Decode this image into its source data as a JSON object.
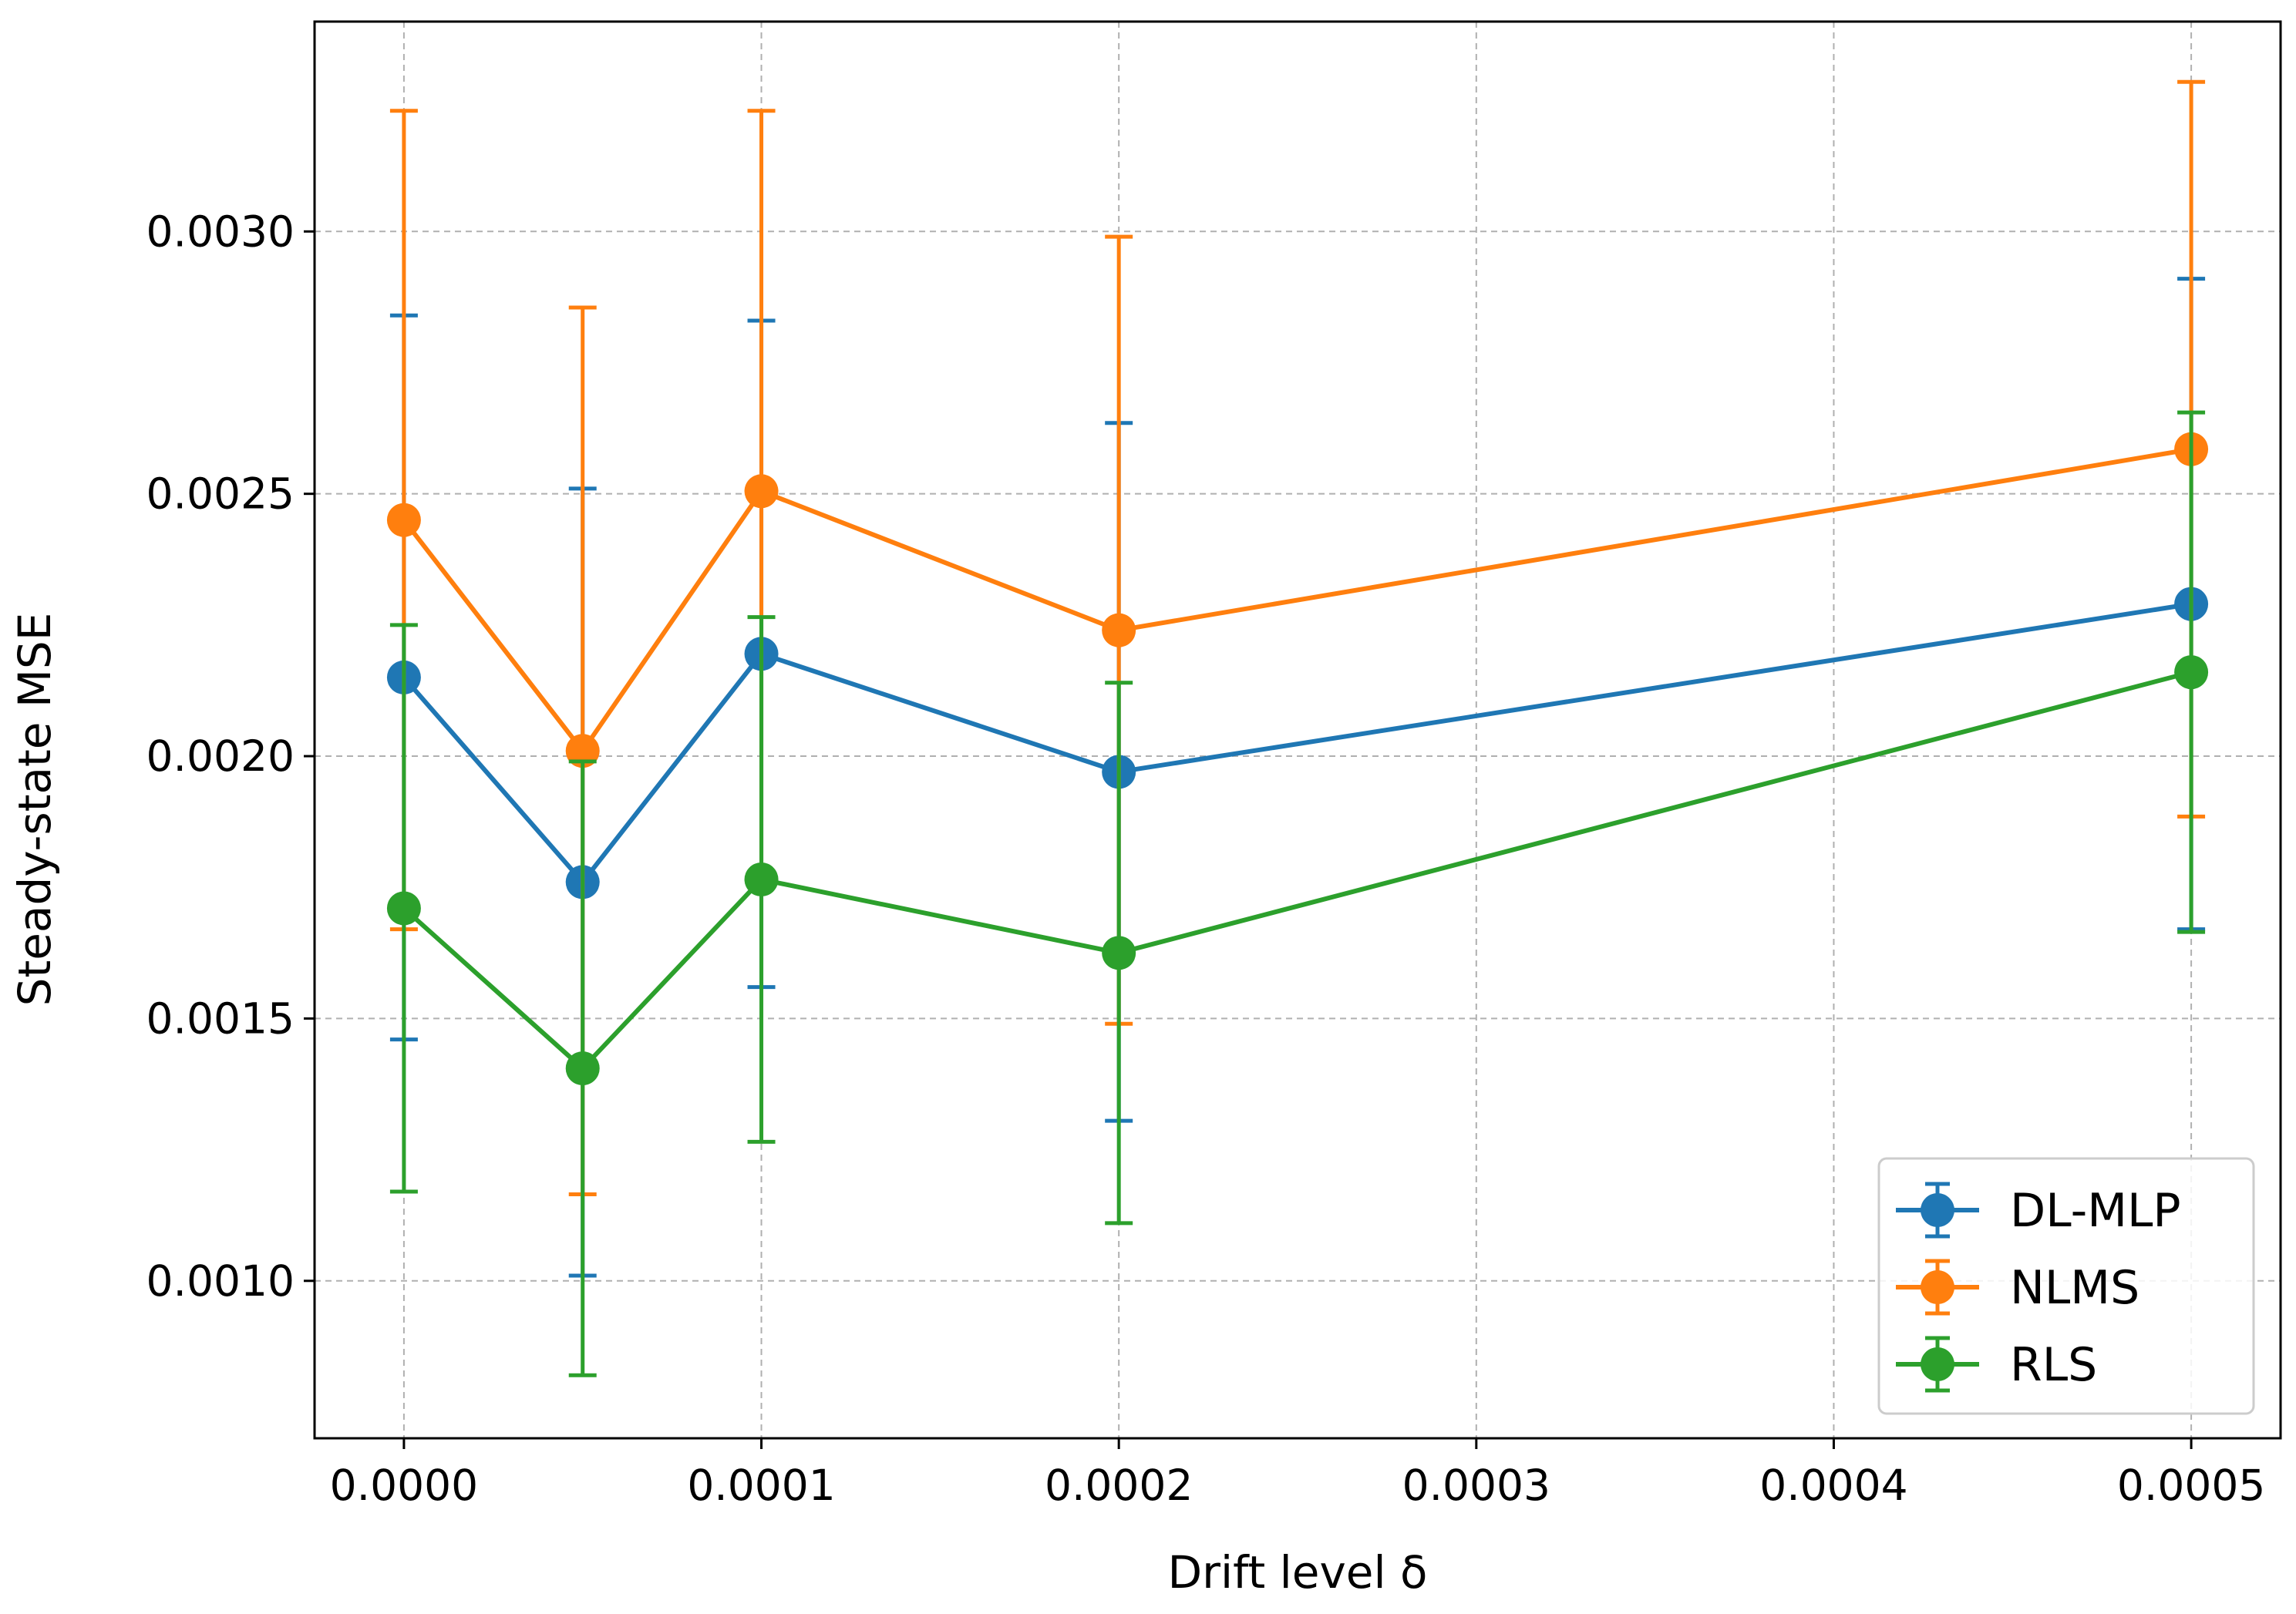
{
  "chart_data": {
    "type": "line",
    "title": "",
    "xlabel": "Drift level δ",
    "ylabel": "Steady-state MSE",
    "xlim": [
      -2.5e-05,
      0.000525
    ],
    "ylim": [
      0.0007,
      0.0034
    ],
    "x_ticks": [
      0.0,
      0.0001,
      0.0002,
      0.0003,
      0.0004,
      0.0005
    ],
    "x_tick_labels": [
      "0.0000",
      "0.0001",
      "0.0002",
      "0.0003",
      "0.0004",
      "0.0005"
    ],
    "y_ticks": [
      0.001,
      0.0015,
      0.002,
      0.0025,
      0.003
    ],
    "y_tick_labels": [
      "0.0010",
      "0.0015",
      "0.0020",
      "0.0025",
      "0.0030"
    ],
    "grid": true,
    "legend_position": "bottom-right",
    "x": [
      0.0,
      5e-05,
      0.0001,
      0.0002,
      0.0005
    ],
    "series": [
      {
        "name": "DL-MLP",
        "color": "#1f77b4",
        "values": [
          0.00215,
          0.00176,
          0.002195,
          0.00197,
          0.00229
        ],
        "error": [
          0.00069,
          0.00075,
          0.000635,
          0.000665,
          0.00062
        ]
      },
      {
        "name": "NLMS",
        "color": "#ff7f0e",
        "values": [
          0.00245,
          0.00201,
          0.002505,
          0.00224,
          0.002585
        ],
        "error": [
          0.00078,
          0.000845,
          0.000725,
          0.00075,
          0.0007
        ]
      },
      {
        "name": "RLS",
        "color": "#2ca02c",
        "values": [
          0.00171,
          0.001405,
          0.001765,
          0.001625,
          0.00216
        ],
        "error": [
          0.00054,
          0.000585,
          0.0005,
          0.000515,
          0.000495
        ]
      }
    ]
  }
}
